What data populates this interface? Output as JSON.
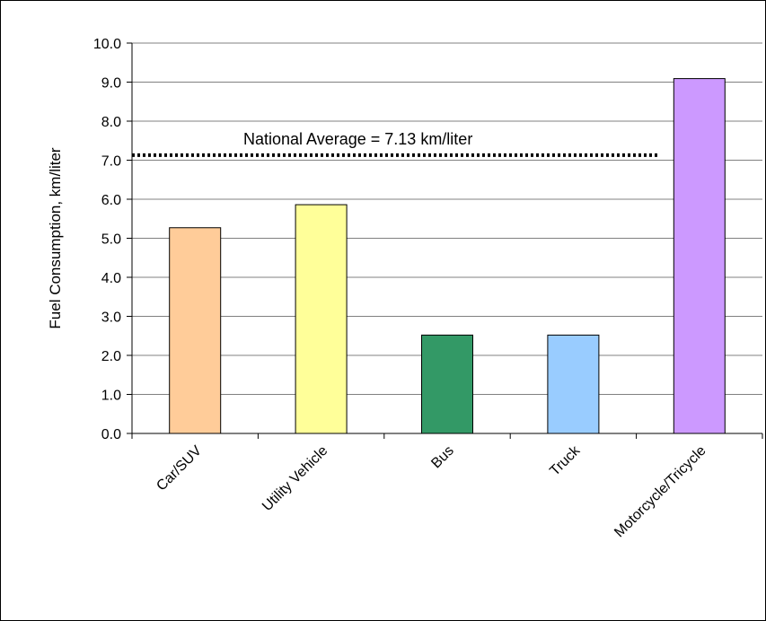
{
  "chart_data": {
    "type": "bar",
    "categories": [
      "Car/SUV",
      "Utility Vehicle",
      "Bus",
      "Truck",
      "Motorcycle/Tricycle"
    ],
    "values": [
      5.27,
      5.86,
      2.52,
      2.52,
      9.09
    ],
    "bar_colors": [
      "#FFCC99",
      "#FFFF99",
      "#339966",
      "#99CCFF",
      "#CC99FF"
    ],
    "ylabel": "Fuel Consumption, km/liter",
    "xlabel": "",
    "ylim": [
      0,
      10
    ],
    "y_ticks": [
      "0.0",
      "1.0",
      "2.0",
      "3.0",
      "4.0",
      "5.0",
      "6.0",
      "7.0",
      "8.0",
      "9.0",
      "10.0"
    ],
    "grid": true,
    "reference_line": {
      "value": 7.13,
      "label": "National Average = 7.13 km/liter",
      "style": "dotted",
      "color": "#000000"
    }
  }
}
